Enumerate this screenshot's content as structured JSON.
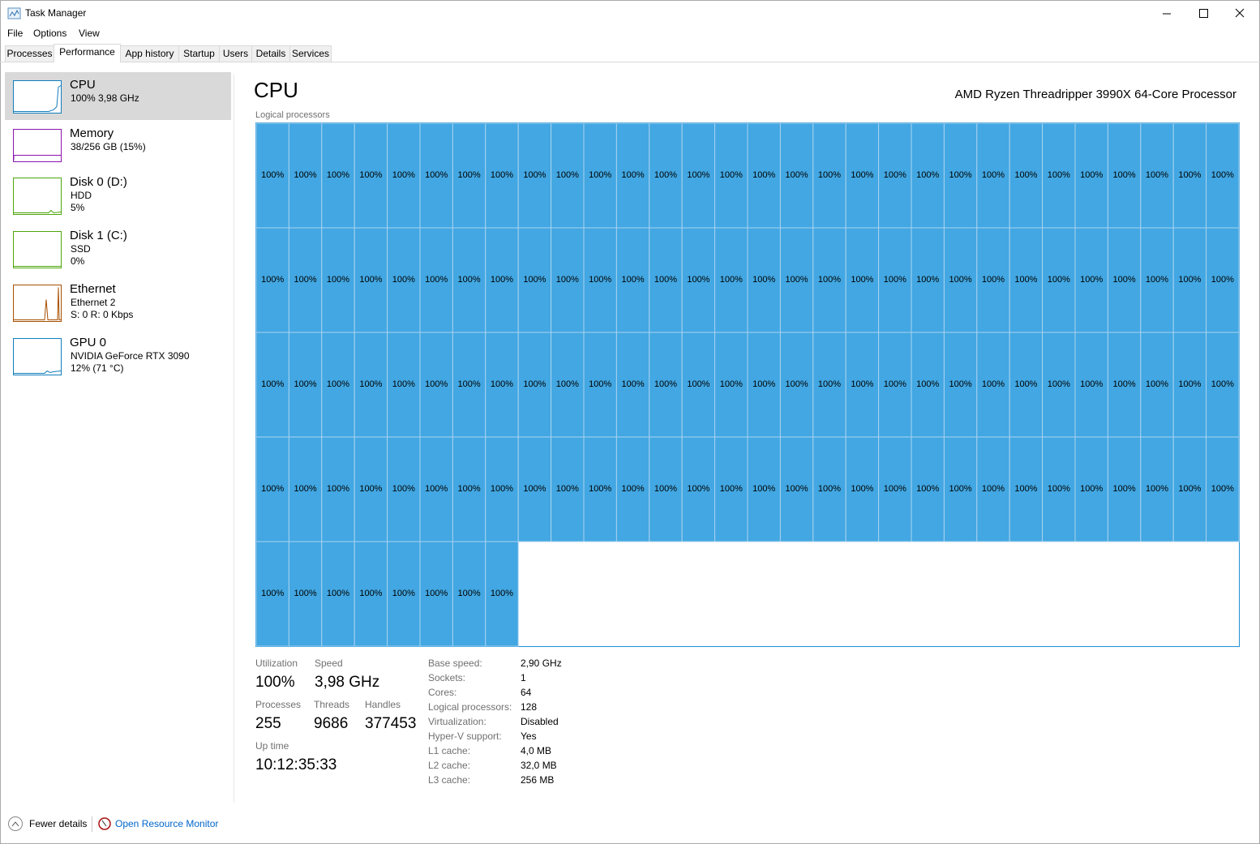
{
  "window": {
    "title": "Task Manager"
  },
  "menu": [
    "File",
    "Options",
    "View"
  ],
  "tabs": [
    "Processes",
    "Performance",
    "App history",
    "Startup",
    "Users",
    "Details",
    "Services"
  ],
  "active_tab": 1,
  "sidebar": [
    {
      "name": "CPU",
      "lines": [
        "100% 3,98 GHz"
      ],
      "color": "#117dbb",
      "selected": true
    },
    {
      "name": "Memory",
      "lines": [
        "38/256 GB (15%)"
      ],
      "color": "#8b12ae"
    },
    {
      "name": "Disk 0 (D:)",
      "lines": [
        "HDD",
        "5%"
      ],
      "color": "#4da60c"
    },
    {
      "name": "Disk 1 (C:)",
      "lines": [
        "SSD",
        "0%"
      ],
      "color": "#4da60c"
    },
    {
      "name": "Ethernet",
      "lines": [
        "Ethernet 2",
        "S: 0 R: 0 Kbps"
      ],
      "color": "#a74f01"
    },
    {
      "name": "GPU 0",
      "lines": [
        "NVIDIA GeForce RTX 3090",
        "12% (71 °C)"
      ],
      "color": "#117dbb"
    }
  ],
  "main": {
    "title": "CPU",
    "processor": "AMD Ryzen Threadripper 3990X 64-Core Processor",
    "grid_label": "Logical processors",
    "cells": [
      "100%",
      "100%",
      "100%",
      "100%",
      "100%",
      "100%",
      "100%",
      "100%",
      "100%",
      "100%",
      "100%",
      "100%",
      "100%",
      "100%",
      "100%",
      "100%",
      "100%",
      "100%",
      "100%",
      "100%",
      "100%",
      "100%",
      "100%",
      "100%",
      "100%",
      "100%",
      "100%",
      "100%",
      "100%",
      "100%",
      "100%",
      "100%",
      "100%",
      "100%",
      "100%",
      "100%",
      "100%",
      "100%",
      "100%",
      "100%",
      "100%",
      "100%",
      "100%",
      "100%",
      "100%",
      "100%",
      "100%",
      "100%",
      "100%",
      "100%",
      "100%",
      "100%",
      "100%",
      "100%",
      "100%",
      "100%",
      "100%",
      "100%",
      "100%",
      "100%",
      "100%",
      "100%",
      "100%",
      "100%",
      "100%",
      "100%",
      "100%",
      "100%",
      "100%",
      "100%",
      "100%",
      "100%",
      "100%",
      "100%",
      "100%",
      "100%",
      "100%",
      "100%",
      "100%",
      "100%",
      "100%",
      "100%",
      "100%",
      "100%",
      "100%",
      "100%",
      "100%",
      "100%",
      "100%",
      "100%",
      "100%",
      "100%",
      "100%",
      "100%",
      "100%",
      "100%",
      "100%",
      "100%",
      "100%",
      "100%",
      "100%",
      "100%",
      "100%",
      "100%",
      "100%",
      "100%",
      "100%",
      "100%",
      "100%",
      "100%",
      "100%",
      "100%",
      "100%",
      "100%",
      "100%",
      "100%",
      "100%",
      "100%",
      "100%",
      "100%",
      "100%",
      "100%",
      "100%",
      "100%",
      "100%",
      "100%",
      "100%",
      "100%"
    ],
    "stats": [
      {
        "label": "Utilization",
        "value": "100%"
      },
      {
        "label": "Speed",
        "value": "3,98 GHz"
      },
      {
        "label": "Processes",
        "value": "255"
      },
      {
        "label": "Threads",
        "value": "9686"
      },
      {
        "label": "Handles",
        "value": "377453"
      },
      {
        "label": "Up time",
        "value": "10:12:35:33"
      }
    ],
    "details": [
      {
        "label": "Base speed:",
        "value": "2,90 GHz"
      },
      {
        "label": "Sockets:",
        "value": "1"
      },
      {
        "label": "Cores:",
        "value": "64"
      },
      {
        "label": "Logical processors:",
        "value": "128"
      },
      {
        "label": "Virtualization:",
        "value": "Disabled"
      },
      {
        "label": "Hyper-V support:",
        "value": "Yes"
      },
      {
        "label": "L1 cache:",
        "value": "4,0 MB"
      },
      {
        "label": "L2 cache:",
        "value": "32,0 MB"
      },
      {
        "label": "L3 cache:",
        "value": "256 MB"
      }
    ]
  },
  "footer": {
    "fewer": "Fewer details",
    "monitor": "Open Resource Monitor"
  }
}
